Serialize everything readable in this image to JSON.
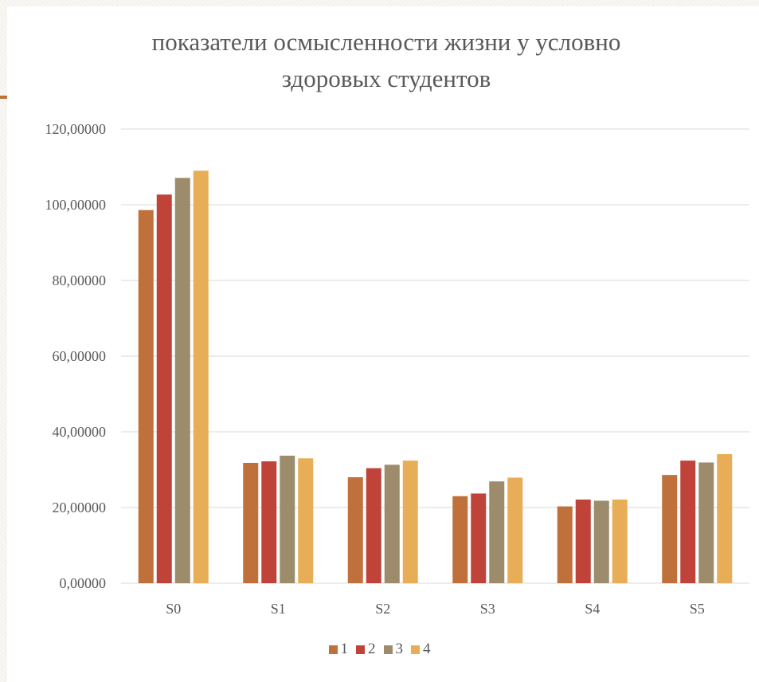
{
  "chart_data": {
    "type": "bar",
    "title": "показатели осмысленности жизни у условно здоровых студентов",
    "xlabel": "",
    "ylabel": "",
    "categories": [
      "S0",
      "S1",
      "S2",
      "S3",
      "S4",
      "S5"
    ],
    "ylim": [
      0,
      120
    ],
    "yticks": [
      "0,00000",
      "20,00000",
      "40,00000",
      "60,00000",
      "80,00000",
      "100,00000",
      "120,00000"
    ],
    "grid": true,
    "legend_position": "bottom",
    "series": [
      {
        "name": "1",
        "color": "#c0703a",
        "values": [
          98.6,
          31.8,
          28.0,
          23.0,
          20.3,
          28.6
        ]
      },
      {
        "name": "2",
        "color": "#c0433a",
        "values": [
          102.7,
          32.2,
          30.4,
          23.7,
          22.1,
          32.4
        ]
      },
      {
        "name": "3",
        "color": "#9c8c6c",
        "values": [
          107.1,
          33.7,
          31.3,
          26.9,
          21.8,
          31.9
        ]
      },
      {
        "name": "4",
        "color": "#e8ad57",
        "values": [
          109.0,
          33.0,
          32.4,
          27.9,
          22.1,
          34.1
        ]
      }
    ]
  }
}
